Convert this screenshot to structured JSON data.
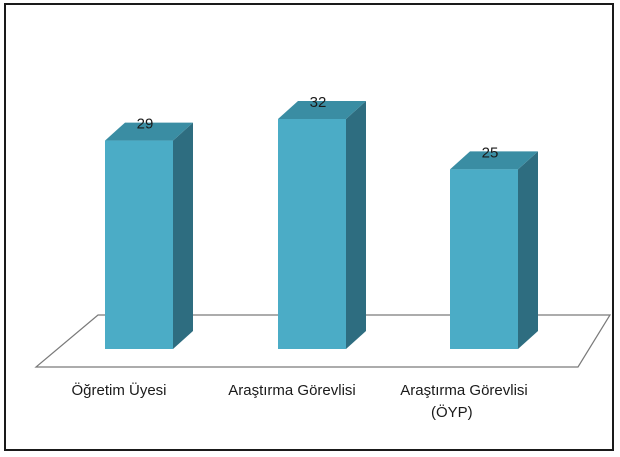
{
  "chart_data": {
    "type": "bar",
    "style": "3d-column",
    "title": "",
    "xlabel": "",
    "ylabel": "",
    "categories": [
      [
        "Öğretim Üyesi"
      ],
      [
        "Araştırma Görevlisi"
      ],
      [
        "Araştırma Görevlisi",
        "(ÖYP)"
      ]
    ],
    "values": [
      29,
      32,
      25
    ],
    "data_labels": [
      "29",
      "32",
      "25"
    ],
    "ylim": [
      0,
      35
    ],
    "grid": false,
    "legend": "none",
    "colors": {
      "bar_front": "#4BACC6",
      "bar_side": "#2E6D80",
      "bar_top": "#3A8DA3",
      "floor_edge": "#7a7a7a"
    }
  }
}
